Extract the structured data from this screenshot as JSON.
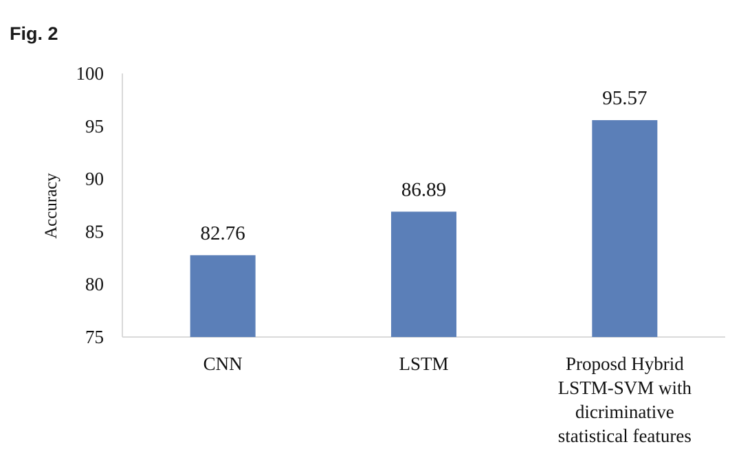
{
  "figure_label": "Fig. 2",
  "colors": {
    "bar": "#5b7fb8",
    "axis": "#d9d9d9",
    "text": "#111111"
  },
  "chart_data": {
    "type": "bar",
    "title": "",
    "xlabel": "",
    "ylabel": "Accuracy",
    "ylim": [
      75,
      100
    ],
    "yticks": [
      75,
      80,
      85,
      90,
      95,
      100
    ],
    "grid": false,
    "categories": [
      [
        "CNN"
      ],
      [
        "LSTM"
      ],
      [
        "Proposd Hybrid",
        "LSTM-SVM with",
        "dicriminative",
        "statistical features"
      ]
    ],
    "values": [
      82.76,
      86.89,
      95.57
    ],
    "data_labels": [
      "82.76",
      "86.89",
      "95.57"
    ]
  }
}
